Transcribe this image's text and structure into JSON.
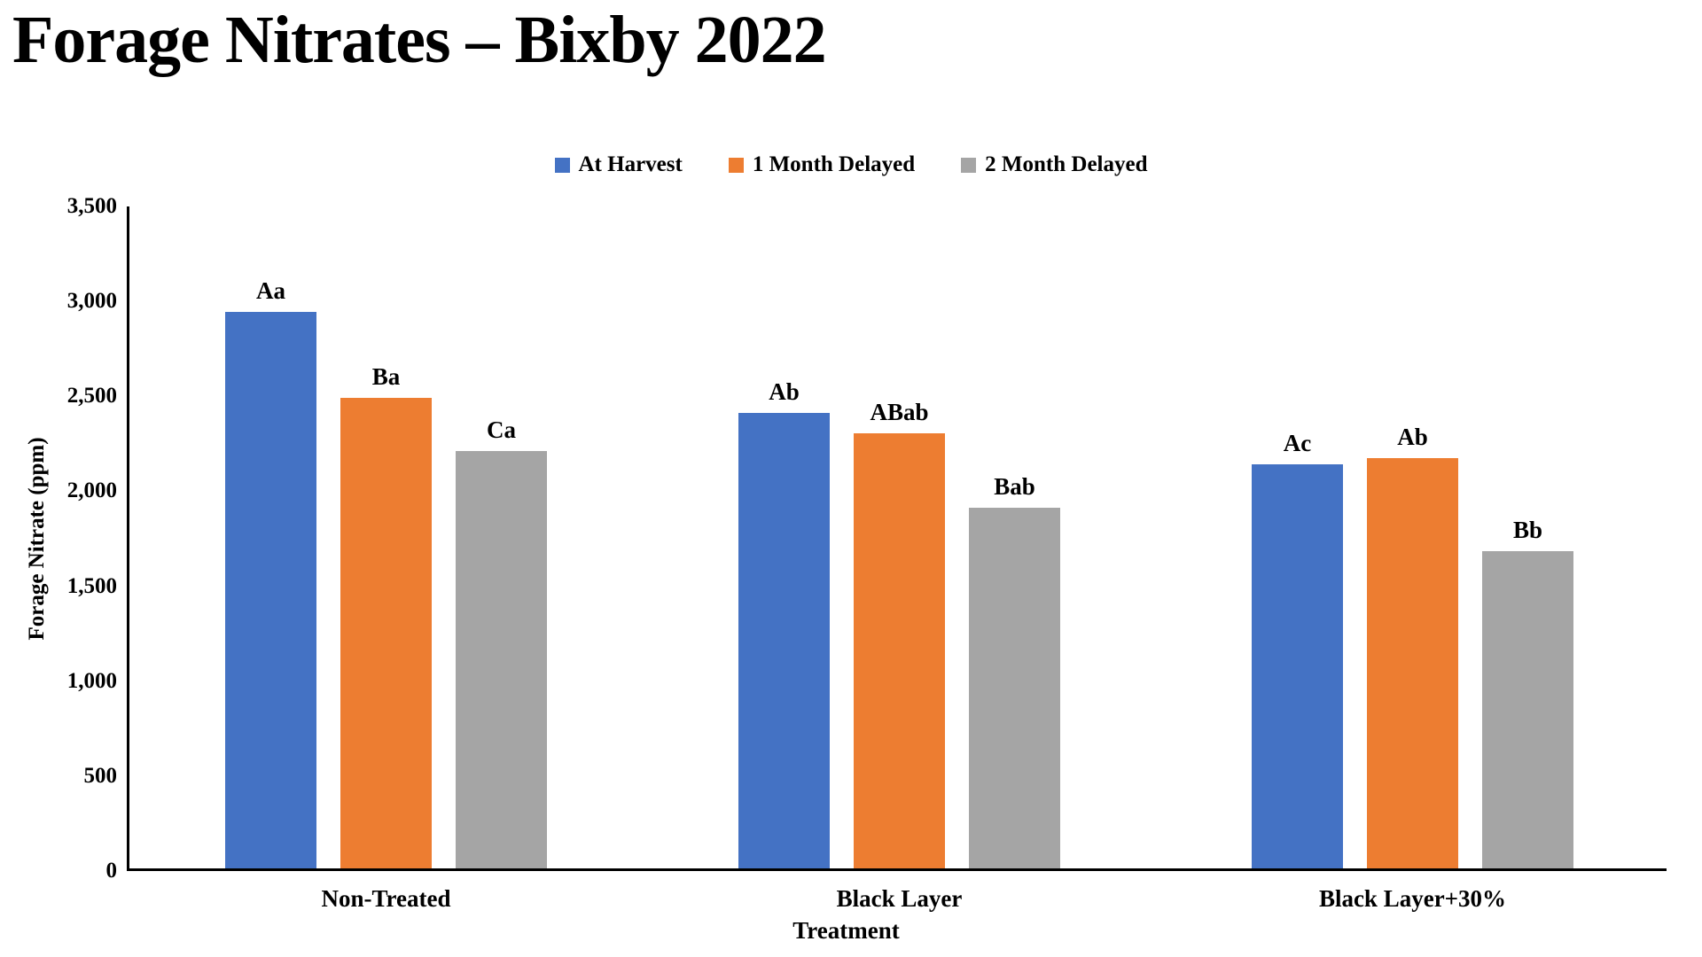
{
  "title": "Forage Nitrates – Bixby 2022",
  "chart_data": {
    "type": "bar",
    "title": "Forage Nitrates – Bixby 2022",
    "xlabel": "Treatment",
    "ylabel": "Forage Nitrate (ppm)",
    "ylim": [
      0,
      3500
    ],
    "ytick_step": 500,
    "yticks": [
      "0",
      "500",
      "1,000",
      "1,500",
      "2,000",
      "2,500",
      "3,000",
      "3,500"
    ],
    "grid": false,
    "legend_position": "top-center",
    "categories": [
      "Non-Treated",
      "Black Layer",
      "Black Layer+30%"
    ],
    "series": [
      {
        "name": "At Harvest",
        "color": "#4472C4",
        "values": [
          2930,
          2400,
          2130
        ],
        "labels": [
          "Aa",
          "Ab",
          "Ac"
        ]
      },
      {
        "name": "1 Month Delayed",
        "color": "#ED7D31",
        "values": [
          2480,
          2290,
          2160
        ],
        "labels": [
          "Ba",
          "ABab",
          "Ab"
        ]
      },
      {
        "name": "2 Month Delayed",
        "color": "#A5A5A5",
        "values": [
          2200,
          1900,
          1670
        ],
        "labels": [
          "Ca",
          "Bab",
          "Bb"
        ]
      }
    ]
  }
}
